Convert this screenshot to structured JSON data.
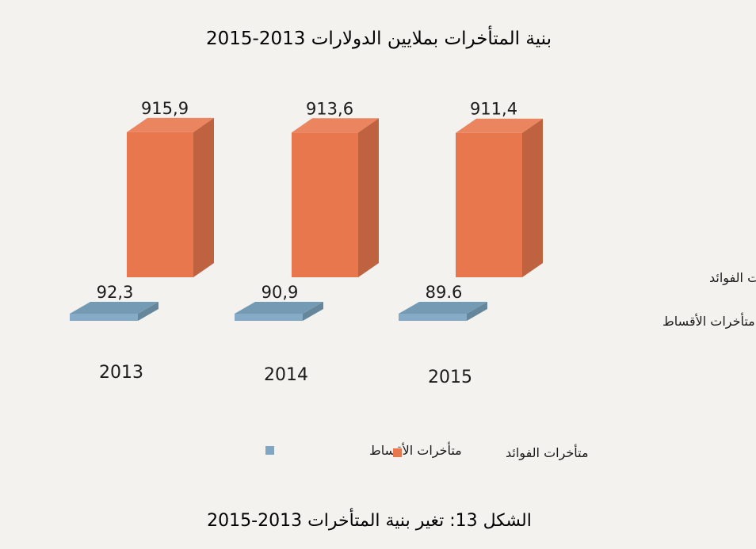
{
  "chart_data": {
    "type": "bar",
    "title": "بنية المتأخرات بملايين الدولارات 2013-2015",
    "categories": [
      "2013",
      "2014",
      "2015"
    ],
    "series": [
      {
        "name": "متأخرات الفوائد",
        "values": [
          915.9,
          913.6,
          911.4
        ],
        "value_labels": [
          "915,9",
          "913,6",
          "911,4"
        ],
        "color": "#e9774e"
      },
      {
        "name": "متأخرات الأقساط",
        "values": [
          92.3,
          90.9,
          89.6
        ],
        "value_labels": [
          "92,3",
          "90,9",
          "89.6"
        ],
        "color": "#7fa7c3"
      }
    ],
    "legend": "bottom",
    "grid": false,
    "caption": "الشكل 13: تغير بنية المتأخرات 2013-2015"
  }
}
